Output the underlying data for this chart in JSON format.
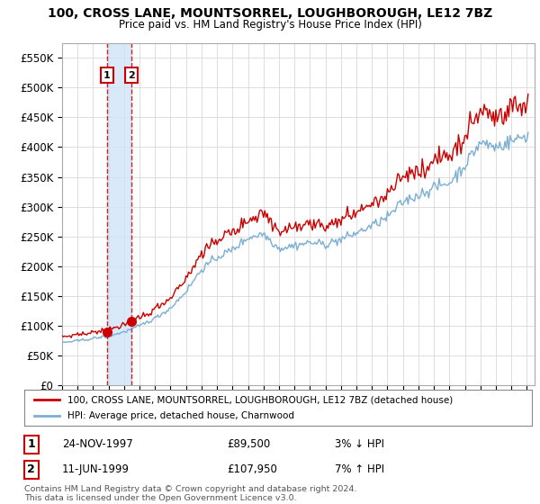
{
  "title": "100, CROSS LANE, MOUNTSORREL, LOUGHBOROUGH, LE12 7BZ",
  "subtitle": "Price paid vs. HM Land Registry's House Price Index (HPI)",
  "ylabel_ticks": [
    "£0",
    "£50K",
    "£100K",
    "£150K",
    "£200K",
    "£250K",
    "£300K",
    "£350K",
    "£400K",
    "£450K",
    "£500K",
    "£550K"
  ],
  "ytick_values": [
    0,
    50000,
    100000,
    150000,
    200000,
    250000,
    300000,
    350000,
    400000,
    450000,
    500000,
    550000
  ],
  "ylim": [
    0,
    575000
  ],
  "hpi_color": "#7bafd4",
  "price_color": "#cc0000",
  "shade_color": "#d0e4f5",
  "sale1_date": 1997.9,
  "sale1_price": 89500,
  "sale2_date": 1999.46,
  "sale2_price": 107950,
  "sale1_label": "1",
  "sale2_label": "2",
  "sale1_text": "24-NOV-1997",
  "sale1_amount": "£89,500",
  "sale1_hpi_rel": "3% ↓ HPI",
  "sale2_text": "11-JUN-1999",
  "sale2_amount": "£107,950",
  "sale2_hpi_rel": "7% ↑ HPI",
  "legend_label1": "100, CROSS LANE, MOUNTSORREL, LOUGHBOROUGH, LE12 7BZ (detached house)",
  "legend_label2": "HPI: Average price, detached house, Charnwood",
  "footer": "Contains HM Land Registry data © Crown copyright and database right 2024.\nThis data is licensed under the Open Government Licence v3.0.",
  "xmin": 1995.0,
  "xmax": 2025.5,
  "background_color": "#ffffff",
  "grid_color": "#dddddd"
}
